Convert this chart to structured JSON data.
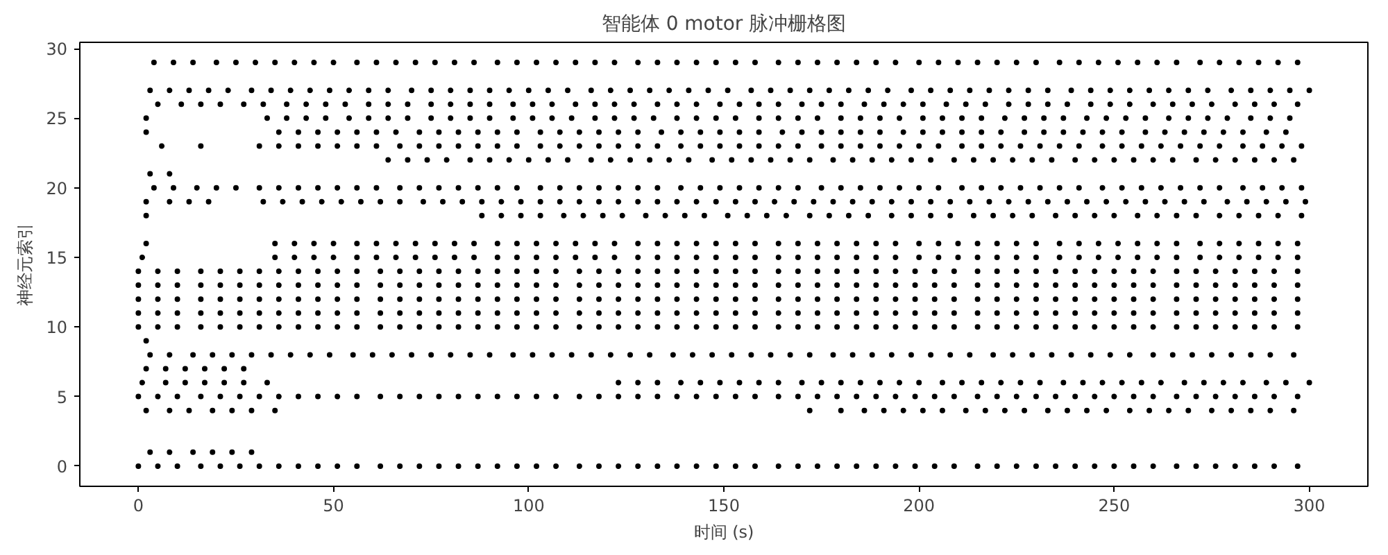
{
  "chart_data": {
    "type": "scatter",
    "title": "智能体 0 motor 脉冲栅格图",
    "xlabel": "时间 (s)",
    "ylabel": "神经元索引",
    "xlim": [
      -15,
      315
    ],
    "ylim": [
      -1.45,
      30.45
    ],
    "xticks": [
      0,
      50,
      100,
      150,
      200,
      250,
      300
    ],
    "yticks": [
      0,
      5,
      10,
      15,
      20,
      25,
      30
    ],
    "grid": false,
    "marker": "circle",
    "series": [
      {
        "color": "#000000",
        "x": [
          0,
          5,
          10,
          16,
          21,
          26,
          31,
          36,
          41,
          46,
          51,
          56,
          62,
          67,
          72,
          77,
          82,
          87,
          92,
          97,
          102,
          107,
          113,
          118,
          123,
          128,
          133,
          138,
          143,
          148,
          153,
          158,
          164,
          169,
          174,
          179,
          184,
          189,
          194,
          199,
          204,
          209,
          215,
          220,
          225,
          230,
          235,
          240,
          245,
          250,
          255,
          260,
          266,
          271,
          276,
          281,
          286,
          291,
          297
        ],
        "values": [
          0,
          0,
          0,
          0,
          0,
          0,
          0,
          0,
          0,
          0,
          0,
          0,
          0,
          0,
          0,
          0,
          0,
          0,
          0,
          0,
          0,
          0,
          0,
          0,
          0,
          0,
          0,
          0,
          0,
          0,
          0,
          0,
          0,
          0,
          0,
          0,
          0,
          0,
          0,
          0,
          0,
          0,
          0,
          0,
          0,
          0,
          0,
          0,
          0,
          0,
          0,
          0,
          0,
          0,
          0,
          0,
          0,
          0,
          0
        ]
      },
      {
        "color": "#000000",
        "x": [
          3,
          8,
          14,
          19,
          24,
          29
        ],
        "values": [
          1,
          1,
          1,
          1,
          1,
          1
        ]
      },
      {
        "color": "#000000",
        "x": [
          2,
          8,
          13,
          19,
          24,
          29,
          35,
          172,
          180,
          186,
          191,
          196,
          201,
          206,
          212,
          217,
          222,
          227,
          233,
          238,
          243,
          248,
          254,
          259,
          264,
          269,
          275,
          280,
          285,
          290,
          296
        ],
        "values": [
          4,
          4,
          4,
          4,
          4,
          4,
          4,
          4,
          4,
          4,
          4,
          4,
          4,
          4,
          4,
          4,
          4,
          4,
          4,
          4,
          4,
          4,
          4,
          4,
          4,
          4,
          4,
          4,
          4,
          4,
          4
        ]
      },
      {
        "color": "#000000",
        "x": [
          0,
          5,
          10,
          16,
          21,
          26,
          31,
          36,
          41,
          46,
          51,
          56,
          62,
          67,
          72,
          77,
          82,
          87,
          92,
          97,
          102,
          107,
          113,
          118,
          123,
          128,
          133,
          138,
          143,
          148,
          153,
          158,
          164,
          169,
          174,
          179,
          184,
          189,
          194,
          199,
          204,
          209,
          215,
          220,
          225,
          230,
          235,
          240,
          245,
          250,
          255,
          260,
          266,
          271,
          276,
          281,
          286,
          291,
          297
        ],
        "values": [
          5,
          5,
          5,
          5,
          5,
          5,
          5,
          5,
          5,
          5,
          5,
          5,
          5,
          5,
          5,
          5,
          5,
          5,
          5,
          5,
          5,
          5,
          5,
          5,
          5,
          5,
          5,
          5,
          5,
          5,
          5,
          5,
          5,
          5,
          5,
          5,
          5,
          5,
          5,
          5,
          5,
          5,
          5,
          5,
          5,
          5,
          5,
          5,
          5,
          5,
          5,
          5,
          5,
          5,
          5,
          5,
          5,
          5,
          5
        ]
      },
      {
        "color": "#000000",
        "x": [
          1,
          7,
          12,
          17,
          22,
          27,
          33,
          123,
          128,
          133,
          139,
          144,
          149,
          154,
          159,
          164,
          170,
          175,
          180,
          185,
          190,
          195,
          200,
          206,
          211,
          216,
          221,
          226,
          231,
          237,
          242,
          247,
          252,
          257,
          262,
          268,
          273,
          278,
          283,
          289,
          294,
          300
        ],
        "values": [
          6,
          6,
          6,
          6,
          6,
          6,
          6,
          6,
          6,
          6,
          6,
          6,
          6,
          6,
          6,
          6,
          6,
          6,
          6,
          6,
          6,
          6,
          6,
          6,
          6,
          6,
          6,
          6,
          6,
          6,
          6,
          6,
          6,
          6,
          6,
          6,
          6,
          6,
          6,
          6,
          6,
          6
        ]
      },
      {
        "color": "#000000",
        "x": [
          2,
          7,
          12,
          17,
          22,
          27
        ],
        "values": [
          7,
          7,
          7,
          7,
          7,
          7
        ]
      },
      {
        "color": "#000000",
        "x": [
          3,
          8,
          14,
          19,
          24,
          29,
          34,
          39,
          44,
          49,
          55,
          60,
          65,
          70,
          75,
          80,
          85,
          90,
          96,
          101,
          106,
          111,
          116,
          121,
          126,
          131,
          137,
          142,
          147,
          152,
          157,
          162,
          167,
          172,
          178,
          183,
          188,
          193,
          198,
          203,
          208,
          213,
          219,
          224,
          229,
          234,
          239,
          244,
          249,
          254,
          260,
          265,
          270,
          275,
          280,
          285,
          290,
          296
        ],
        "values": [
          8,
          8,
          8,
          8,
          8,
          8,
          8,
          8,
          8,
          8,
          8,
          8,
          8,
          8,
          8,
          8,
          8,
          8,
          8,
          8,
          8,
          8,
          8,
          8,
          8,
          8,
          8,
          8,
          8,
          8,
          8,
          8,
          8,
          8,
          8,
          8,
          8,
          8,
          8,
          8,
          8,
          8,
          8,
          8,
          8,
          8,
          8,
          8,
          8,
          8,
          8,
          8,
          8,
          8,
          8,
          8,
          8,
          8
        ]
      },
      {
        "color": "#000000",
        "x": [
          2
        ],
        "values": [
          9
        ]
      },
      {
        "color": "#000000",
        "x": [
          0,
          5,
          10,
          16,
          21,
          26,
          31,
          36,
          41,
          46,
          51,
          56,
          62,
          67,
          72,
          77,
          82,
          87,
          92,
          97,
          102,
          107,
          113,
          118,
          123,
          128,
          133,
          138,
          143,
          148,
          153,
          158,
          164,
          169,
          174,
          179,
          184,
          189,
          194,
          199,
          204,
          209,
          215,
          220,
          225,
          230,
          235,
          240,
          245,
          250,
          255,
          260,
          266,
          271,
          276,
          281,
          286,
          291,
          297
        ],
        "values": [
          10,
          10,
          10,
          10,
          10,
          10,
          10,
          10,
          10,
          10,
          10,
          10,
          10,
          10,
          10,
          10,
          10,
          10,
          10,
          10,
          10,
          10,
          10,
          10,
          10,
          10,
          10,
          10,
          10,
          10,
          10,
          10,
          10,
          10,
          10,
          10,
          10,
          10,
          10,
          10,
          10,
          10,
          10,
          10,
          10,
          10,
          10,
          10,
          10,
          10,
          10,
          10,
          10,
          10,
          10,
          10,
          10,
          10,
          10
        ]
      },
      {
        "color": "#000000",
        "x": [
          0,
          5,
          10,
          16,
          21,
          26,
          31,
          36,
          41,
          46,
          51,
          56,
          62,
          67,
          72,
          77,
          82,
          87,
          92,
          97,
          102,
          107,
          113,
          118,
          123,
          128,
          133,
          138,
          143,
          148,
          153,
          158,
          164,
          169,
          174,
          179,
          184,
          189,
          194,
          199,
          204,
          209,
          215,
          220,
          225,
          230,
          235,
          240,
          245,
          250,
          255,
          260,
          266,
          271,
          276,
          281,
          286,
          291,
          297
        ],
        "values": [
          11,
          11,
          11,
          11,
          11,
          11,
          11,
          11,
          11,
          11,
          11,
          11,
          11,
          11,
          11,
          11,
          11,
          11,
          11,
          11,
          11,
          11,
          11,
          11,
          11,
          11,
          11,
          11,
          11,
          11,
          11,
          11,
          11,
          11,
          11,
          11,
          11,
          11,
          11,
          11,
          11,
          11,
          11,
          11,
          11,
          11,
          11,
          11,
          11,
          11,
          11,
          11,
          11,
          11,
          11,
          11,
          11,
          11,
          11
        ]
      },
      {
        "color": "#000000",
        "x": [
          0,
          5,
          10,
          16,
          21,
          26,
          31,
          36,
          41,
          46,
          51,
          56,
          62,
          67,
          72,
          77,
          82,
          87,
          92,
          97,
          102,
          107,
          113,
          118,
          123,
          128,
          133,
          138,
          143,
          148,
          153,
          158,
          164,
          169,
          174,
          179,
          184,
          189,
          194,
          199,
          204,
          209,
          215,
          220,
          225,
          230,
          235,
          240,
          245,
          250,
          255,
          260,
          266,
          271,
          276,
          281,
          286,
          291,
          297
        ],
        "values": [
          12,
          12,
          12,
          12,
          12,
          12,
          12,
          12,
          12,
          12,
          12,
          12,
          12,
          12,
          12,
          12,
          12,
          12,
          12,
          12,
          12,
          12,
          12,
          12,
          12,
          12,
          12,
          12,
          12,
          12,
          12,
          12,
          12,
          12,
          12,
          12,
          12,
          12,
          12,
          12,
          12,
          12,
          12,
          12,
          12,
          12,
          12,
          12,
          12,
          12,
          12,
          12,
          12,
          12,
          12,
          12,
          12,
          12,
          12
        ]
      },
      {
        "color": "#000000",
        "x": [
          0,
          5,
          10,
          16,
          21,
          26,
          31,
          36,
          41,
          46,
          51,
          56,
          62,
          67,
          72,
          77,
          82,
          87,
          92,
          97,
          102,
          107,
          113,
          118,
          123,
          128,
          133,
          138,
          143,
          148,
          153,
          158,
          164,
          169,
          174,
          179,
          184,
          189,
          194,
          199,
          204,
          209,
          215,
          220,
          225,
          230,
          235,
          240,
          245,
          250,
          255,
          260,
          266,
          271,
          276,
          281,
          286,
          291,
          297
        ],
        "values": [
          13,
          13,
          13,
          13,
          13,
          13,
          13,
          13,
          13,
          13,
          13,
          13,
          13,
          13,
          13,
          13,
          13,
          13,
          13,
          13,
          13,
          13,
          13,
          13,
          13,
          13,
          13,
          13,
          13,
          13,
          13,
          13,
          13,
          13,
          13,
          13,
          13,
          13,
          13,
          13,
          13,
          13,
          13,
          13,
          13,
          13,
          13,
          13,
          13,
          13,
          13,
          13,
          13,
          13,
          13,
          13,
          13,
          13,
          13
        ]
      },
      {
        "color": "#000000",
        "x": [
          0,
          5,
          10,
          16,
          21,
          26,
          31,
          36,
          41,
          46,
          51,
          56,
          62,
          67,
          72,
          77,
          82,
          87,
          92,
          97,
          102,
          107,
          113,
          118,
          123,
          128,
          133,
          138,
          143,
          148,
          153,
          158,
          164,
          169,
          174,
          179,
          184,
          189,
          194,
          199,
          204,
          209,
          215,
          220,
          225,
          230,
          235,
          240,
          245,
          250,
          255,
          260,
          266,
          271,
          276,
          281,
          286,
          291,
          297
        ],
        "values": [
          14,
          14,
          14,
          14,
          14,
          14,
          14,
          14,
          14,
          14,
          14,
          14,
          14,
          14,
          14,
          14,
          14,
          14,
          14,
          14,
          14,
          14,
          14,
          14,
          14,
          14,
          14,
          14,
          14,
          14,
          14,
          14,
          14,
          14,
          14,
          14,
          14,
          14,
          14,
          14,
          14,
          14,
          14,
          14,
          14,
          14,
          14,
          14,
          14,
          14,
          14,
          14,
          14,
          14,
          14,
          14,
          14,
          14,
          14
        ]
      },
      {
        "color": "#000000",
        "x": [
          1,
          35,
          40,
          45,
          50,
          56,
          61,
          66,
          71,
          76,
          81,
          86,
          92,
          97,
          102,
          107,
          112,
          117,
          122,
          128,
          133,
          138,
          143,
          148,
          153,
          158,
          164,
          169,
          174,
          179,
          184,
          189,
          194,
          200,
          205,
          210,
          215,
          220,
          225,
          230,
          236,
          241,
          246,
          251,
          256,
          261,
          266,
          272,
          277,
          282,
          287,
          292,
          297
        ],
        "values": [
          15,
          15,
          15,
          15,
          15,
          15,
          15,
          15,
          15,
          15,
          15,
          15,
          15,
          15,
          15,
          15,
          15,
          15,
          15,
          15,
          15,
          15,
          15,
          15,
          15,
          15,
          15,
          15,
          15,
          15,
          15,
          15,
          15,
          15,
          15,
          15,
          15,
          15,
          15,
          15,
          15,
          15,
          15,
          15,
          15,
          15,
          15,
          15,
          15,
          15,
          15,
          15,
          15
        ]
      },
      {
        "color": "#000000",
        "x": [
          2,
          35,
          40,
          45,
          50,
          56,
          61,
          66,
          71,
          76,
          81,
          86,
          92,
          97,
          102,
          107,
          112,
          117,
          122,
          128,
          133,
          138,
          143,
          148,
          153,
          158,
          164,
          169,
          174,
          179,
          184,
          189,
          194,
          200,
          205,
          210,
          215,
          220,
          225,
          230,
          236,
          241,
          246,
          251,
          256,
          261,
          266,
          272,
          277,
          282,
          287,
          292,
          297
        ],
        "values": [
          16,
          16,
          16,
          16,
          16,
          16,
          16,
          16,
          16,
          16,
          16,
          16,
          16,
          16,
          16,
          16,
          16,
          16,
          16,
          16,
          16,
          16,
          16,
          16,
          16,
          16,
          16,
          16,
          16,
          16,
          16,
          16,
          16,
          16,
          16,
          16,
          16,
          16,
          16,
          16,
          16,
          16,
          16,
          16,
          16,
          16,
          16,
          16,
          16,
          16,
          16,
          16,
          16
        ]
      },
      {
        "color": "#000000",
        "x": [
          2,
          88,
          93,
          98,
          103,
          109,
          114,
          119,
          124,
          130,
          135,
          140,
          145,
          151,
          156,
          161,
          166,
          172,
          177,
          182,
          187,
          193,
          198,
          203,
          208,
          214,
          219,
          224,
          229,
          235,
          240,
          245,
          250,
          256,
          261,
          266,
          271,
          277,
          282,
          287,
          292,
          298
        ],
        "values": [
          18,
          18,
          18,
          18,
          18,
          18,
          18,
          18,
          18,
          18,
          18,
          18,
          18,
          18,
          18,
          18,
          18,
          18,
          18,
          18,
          18,
          18,
          18,
          18,
          18,
          18,
          18,
          18,
          18,
          18,
          18,
          18,
          18,
          18,
          18,
          18,
          18,
          18,
          18,
          18,
          18,
          18
        ]
      },
      {
        "color": "#000000",
        "x": [
          2,
          8,
          13,
          18,
          32,
          37,
          42,
          47,
          52,
          57,
          62,
          67,
          73,
          78,
          83,
          88,
          93,
          98,
          103,
          108,
          113,
          118,
          123,
          128,
          133,
          138,
          143,
          148,
          153,
          158,
          163,
          168,
          173,
          178,
          183,
          188,
          193,
          198,
          203,
          208,
          213,
          218,
          223,
          228,
          233,
          238,
          243,
          248,
          253,
          258,
          263,
          268,
          273,
          279,
          284,
          289,
          294,
          299
        ],
        "values": [
          19,
          19,
          19,
          19,
          19,
          19,
          19,
          19,
          19,
          19,
          19,
          19,
          19,
          19,
          19,
          19,
          19,
          19,
          19,
          19,
          19,
          19,
          19,
          19,
          19,
          19,
          19,
          19,
          19,
          19,
          19,
          19,
          19,
          19,
          19,
          19,
          19,
          19,
          19,
          19,
          19,
          19,
          19,
          19,
          19,
          19,
          19,
          19,
          19,
          19,
          19,
          19,
          19,
          19,
          19,
          19,
          19,
          19
        ]
      },
      {
        "color": "#000000",
        "x": [
          4,
          9,
          15,
          20,
          25,
          31,
          36,
          41,
          46,
          51,
          56,
          61,
          67,
          72,
          77,
          82,
          87,
          92,
          97,
          103,
          108,
          113,
          118,
          123,
          128,
          133,
          139,
          144,
          149,
          154,
          159,
          164,
          169,
          175,
          180,
          185,
          190,
          195,
          200,
          205,
          211,
          216,
          221,
          226,
          231,
          236,
          241,
          247,
          252,
          257,
          262,
          267,
          272,
          277,
          283,
          288,
          293,
          298
        ],
        "values": [
          20,
          20,
          20,
          20,
          20,
          20,
          20,
          20,
          20,
          20,
          20,
          20,
          20,
          20,
          20,
          20,
          20,
          20,
          20,
          20,
          20,
          20,
          20,
          20,
          20,
          20,
          20,
          20,
          20,
          20,
          20,
          20,
          20,
          20,
          20,
          20,
          20,
          20,
          20,
          20,
          20,
          20,
          20,
          20,
          20,
          20,
          20,
          20,
          20,
          20,
          20,
          20,
          20,
          20,
          20,
          20,
          20,
          20
        ]
      },
      {
        "color": "#000000",
        "x": [
          3,
          8
        ],
        "values": [
          21,
          21
        ]
      },
      {
        "color": "#000000",
        "x": [
          64,
          69,
          74,
          79,
          85,
          90,
          95,
          100,
          105,
          110,
          116,
          121,
          126,
          131,
          136,
          141,
          147,
          152,
          157,
          162,
          167,
          172,
          178,
          183,
          188,
          193,
          198,
          203,
          209,
          214,
          219,
          224,
          229,
          234,
          240,
          245,
          250,
          255,
          260,
          265,
          271,
          276,
          281,
          286,
          291,
          296
        ],
        "values": [
          22,
          22,
          22,
          22,
          22,
          22,
          22,
          22,
          22,
          22,
          22,
          22,
          22,
          22,
          22,
          22,
          22,
          22,
          22,
          22,
          22,
          22,
          22,
          22,
          22,
          22,
          22,
          22,
          22,
          22,
          22,
          22,
          22,
          22,
          22,
          22,
          22,
          22,
          22,
          22,
          22,
          22,
          22,
          22,
          22,
          22
        ]
      },
      {
        "color": "#000000",
        "x": [
          6,
          16,
          31,
          36,
          41,
          46,
          51,
          56,
          61,
          67,
          72,
          77,
          82,
          87,
          92,
          97,
          103,
          108,
          113,
          118,
          123,
          128,
          133,
          139,
          144,
          149,
          154,
          159,
          164,
          169,
          175,
          180,
          185,
          190,
          195,
          200,
          205,
          211,
          216,
          221,
          226,
          231,
          236,
          241,
          247,
          252,
          257,
          262,
          267,
          272,
          277,
          283,
          288,
          293,
          298
        ],
        "values": [
          23,
          23,
          23,
          23,
          23,
          23,
          23,
          23,
          23,
          23,
          23,
          23,
          23,
          23,
          23,
          23,
          23,
          23,
          23,
          23,
          23,
          23,
          23,
          23,
          23,
          23,
          23,
          23,
          23,
          23,
          23,
          23,
          23,
          23,
          23,
          23,
          23,
          23,
          23,
          23,
          23,
          23,
          23,
          23,
          23,
          23,
          23,
          23,
          23,
          23,
          23,
          23,
          23,
          23,
          23
        ]
      },
      {
        "color": "#000000",
        "x": [
          2,
          36,
          41,
          46,
          51,
          56,
          61,
          66,
          72,
          77,
          82,
          87,
          92,
          97,
          103,
          108,
          113,
          118,
          123,
          128,
          134,
          139,
          144,
          149,
          154,
          159,
          165,
          170,
          175,
          180,
          185,
          190,
          196,
          201,
          206,
          211,
          216,
          221,
          227,
          232,
          237,
          242,
          247,
          252,
          258,
          263,
          268,
          273,
          278,
          283,
          289,
          294
        ],
        "values": [
          24,
          24,
          24,
          24,
          24,
          24,
          24,
          24,
          24,
          24,
          24,
          24,
          24,
          24,
          24,
          24,
          24,
          24,
          24,
          24,
          24,
          24,
          24,
          24,
          24,
          24,
          24,
          24,
          24,
          24,
          24,
          24,
          24,
          24,
          24,
          24,
          24,
          24,
          24,
          24,
          24,
          24,
          24,
          24,
          24,
          24,
          24,
          24,
          24,
          24,
          24,
          24
        ]
      },
      {
        "color": "#000000",
        "x": [
          2,
          33,
          38,
          43,
          48,
          54,
          59,
          64,
          69,
          75,
          80,
          85,
          90,
          96,
          101,
          106,
          111,
          117,
          122,
          127,
          132,
          138,
          143,
          148,
          153,
          159,
          164,
          169,
          174,
          180,
          185,
          190,
          195,
          201,
          206,
          211,
          216,
          222,
          227,
          232,
          237,
          243,
          248,
          253,
          258,
          264,
          269,
          274,
          279,
          285,
          290,
          295
        ],
        "values": [
          25,
          25,
          25,
          25,
          25,
          25,
          25,
          25,
          25,
          25,
          25,
          25,
          25,
          25,
          25,
          25,
          25,
          25,
          25,
          25,
          25,
          25,
          25,
          25,
          25,
          25,
          25,
          25,
          25,
          25,
          25,
          25,
          25,
          25,
          25,
          25,
          25,
          25,
          25,
          25,
          25,
          25,
          25,
          25,
          25,
          25,
          25,
          25,
          25,
          25,
          25,
          25
        ]
      },
      {
        "color": "#000000",
        "x": [
          5,
          11,
          16,
          21,
          27,
          32,
          38,
          43,
          48,
          53,
          59,
          64,
          69,
          75,
          80,
          85,
          90,
          96,
          101,
          106,
          112,
          117,
          122,
          127,
          133,
          138,
          143,
          149,
          154,
          159,
          164,
          170,
          175,
          180,
          186,
          191,
          196,
          201,
          207,
          212,
          217,
          223,
          228,
          233,
          238,
          244,
          249,
          254,
          260,
          265,
          270,
          275,
          281,
          286,
          291,
          297
        ],
        "values": [
          26,
          26,
          26,
          26,
          26,
          26,
          26,
          26,
          26,
          26,
          26,
          26,
          26,
          26,
          26,
          26,
          26,
          26,
          26,
          26,
          26,
          26,
          26,
          26,
          26,
          26,
          26,
          26,
          26,
          26,
          26,
          26,
          26,
          26,
          26,
          26,
          26,
          26,
          26,
          26,
          26,
          26,
          26,
          26,
          26,
          26,
          26,
          26,
          26,
          26,
          26,
          26,
          26,
          26,
          26,
          26
        ]
      },
      {
        "color": "#000000",
        "x": [
          3,
          8,
          13,
          18,
          23,
          29,
          34,
          39,
          44,
          49,
          54,
          59,
          64,
          70,
          75,
          80,
          85,
          90,
          95,
          100,
          105,
          110,
          116,
          121,
          126,
          131,
          136,
          141,
          146,
          151,
          157,
          162,
          167,
          172,
          177,
          182,
          187,
          192,
          198,
          203,
          208,
          213,
          218,
          223,
          228,
          233,
          239,
          244,
          249,
          254,
          259,
          264,
          269,
          274,
          280,
          285,
          290,
          295,
          300
        ],
        "values": [
          27,
          27,
          27,
          27,
          27,
          27,
          27,
          27,
          27,
          27,
          27,
          27,
          27,
          27,
          27,
          27,
          27,
          27,
          27,
          27,
          27,
          27,
          27,
          27,
          27,
          27,
          27,
          27,
          27,
          27,
          27,
          27,
          27,
          27,
          27,
          27,
          27,
          27,
          27,
          27,
          27,
          27,
          27,
          27,
          27,
          27,
          27,
          27,
          27,
          27,
          27,
          27,
          27,
          27,
          27,
          27,
          27,
          27,
          27
        ]
      },
      {
        "color": "#000000",
        "x": [
          4,
          9,
          14,
          20,
          25,
          30,
          35,
          40,
          45,
          50,
          56,
          61,
          66,
          71,
          76,
          81,
          86,
          92,
          97,
          102,
          107,
          112,
          117,
          122,
          128,
          133,
          138,
          143,
          148,
          153,
          158,
          164,
          169,
          174,
          179,
          184,
          189,
          194,
          200,
          205,
          210,
          215,
          220,
          225,
          230,
          236,
          241,
          246,
          251,
          256,
          261,
          266,
          272,
          277,
          282,
          287,
          292,
          297
        ],
        "values": [
          29,
          29,
          29,
          29,
          29,
          29,
          29,
          29,
          29,
          29,
          29,
          29,
          29,
          29,
          29,
          29,
          29,
          29,
          29,
          29,
          29,
          29,
          29,
          29,
          29,
          29,
          29,
          29,
          29,
          29,
          29,
          29,
          29,
          29,
          29,
          29,
          29,
          29,
          29,
          29,
          29,
          29,
          29,
          29,
          29,
          29,
          29,
          29,
          29,
          29,
          29,
          29,
          29,
          29,
          29,
          29,
          29,
          29
        ]
      }
    ]
  }
}
